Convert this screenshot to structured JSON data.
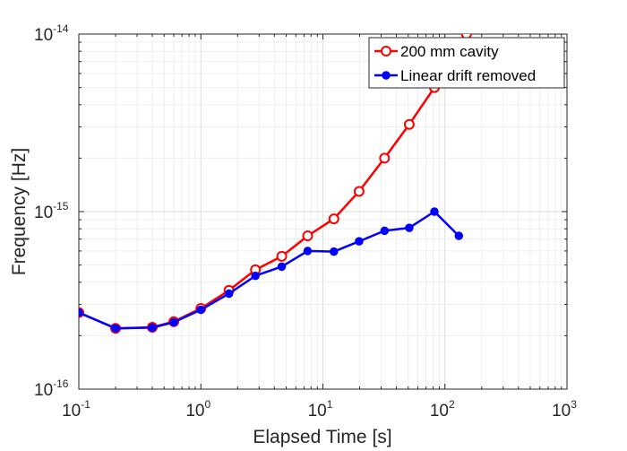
{
  "chart_data": {
    "type": "line",
    "title": "",
    "xlabel": "Elapsed Time [s]",
    "ylabel": "Frequency [Hz]",
    "x_scale": "log",
    "y_scale": "log",
    "xlim": [
      0.1,
      1000
    ],
    "ylim": [
      1e-16,
      1e-14
    ],
    "grid": true,
    "legend_position": "top-right",
    "x_ticks": [
      {
        "base": "10",
        "exp": "-1"
      },
      {
        "base": "10",
        "exp": "0"
      },
      {
        "base": "10",
        "exp": "1"
      },
      {
        "base": "10",
        "exp": "2"
      },
      {
        "base": "10",
        "exp": "3"
      }
    ],
    "y_ticks": [
      {
        "base": "10",
        "exp": "-16"
      },
      {
        "base": "10",
        "exp": "-15"
      },
      {
        "base": "10",
        "exp": "-14"
      }
    ],
    "series": [
      {
        "name": "200 mm cavity",
        "color": "#ff0000",
        "marker": "open-circle",
        "x": [
          0.1,
          0.2,
          0.4,
          0.6,
          1.0,
          1.7,
          2.8,
          4.6,
          7.5,
          12.3,
          19.8,
          32,
          51,
          82,
          150
        ],
        "y": [
          2.7e-16,
          2.2e-16,
          2.23e-16,
          2.4e-16,
          2.85e-16,
          3.6e-16,
          4.7e-16,
          5.6e-16,
          7.3e-16,
          9.1e-16,
          1.3e-15,
          2e-15,
          3.1e-15,
          5e-15,
          1e-14
        ]
      },
      {
        "name": "Linear drift removed",
        "color": "#0000ff",
        "marker": "filled-circle",
        "x": [
          0.1,
          0.2,
          0.4,
          0.6,
          1.0,
          1.7,
          2.8,
          4.6,
          7.5,
          12.3,
          19.8,
          32,
          51,
          82,
          130
        ],
        "y": [
          2.7e-16,
          2.2e-16,
          2.22e-16,
          2.38e-16,
          2.8e-16,
          3.45e-16,
          4.35e-16,
          4.9e-16,
          6e-16,
          5.95e-16,
          6.8e-16,
          7.8e-16,
          8.1e-16,
          1e-15,
          7.3e-16
        ]
      }
    ]
  }
}
